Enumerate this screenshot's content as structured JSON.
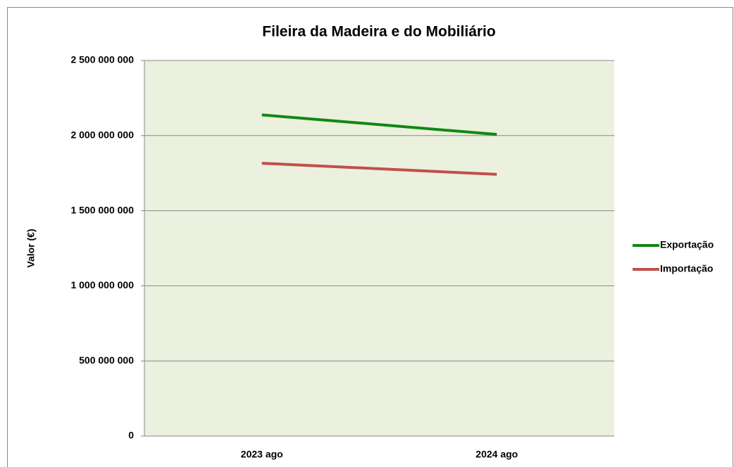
{
  "chart_data": {
    "type": "line",
    "title": "Fileira da Madeira e do Mobiliário",
    "y_label": "Valor (€)",
    "categories": [
      "2023 ago",
      "2024 ago"
    ],
    "series": [
      {
        "name": "Exportação",
        "color": "#118811",
        "values": [
          2138000000,
          2008000000
        ]
      },
      {
        "name": "Importação",
        "color": "#c0504d",
        "values": [
          1816000000,
          1742000000
        ]
      }
    ],
    "ylim": [
      0,
      2500000000
    ],
    "yticks": [
      0,
      {
        "value": 500000000,
        "label": "500 000 000"
      },
      {
        "value": 1000000000,
        "label": "1 000 000 000"
      },
      {
        "value": 1500000000,
        "label": "1 500 000 000"
      },
      {
        "value": 2000000000,
        "label": "2 000 000 000"
      },
      {
        "value": 2500000000,
        "label": "2 500 000 000"
      }
    ],
    "grid": true,
    "legend": "right",
    "plot_background": "#ebf1de"
  }
}
